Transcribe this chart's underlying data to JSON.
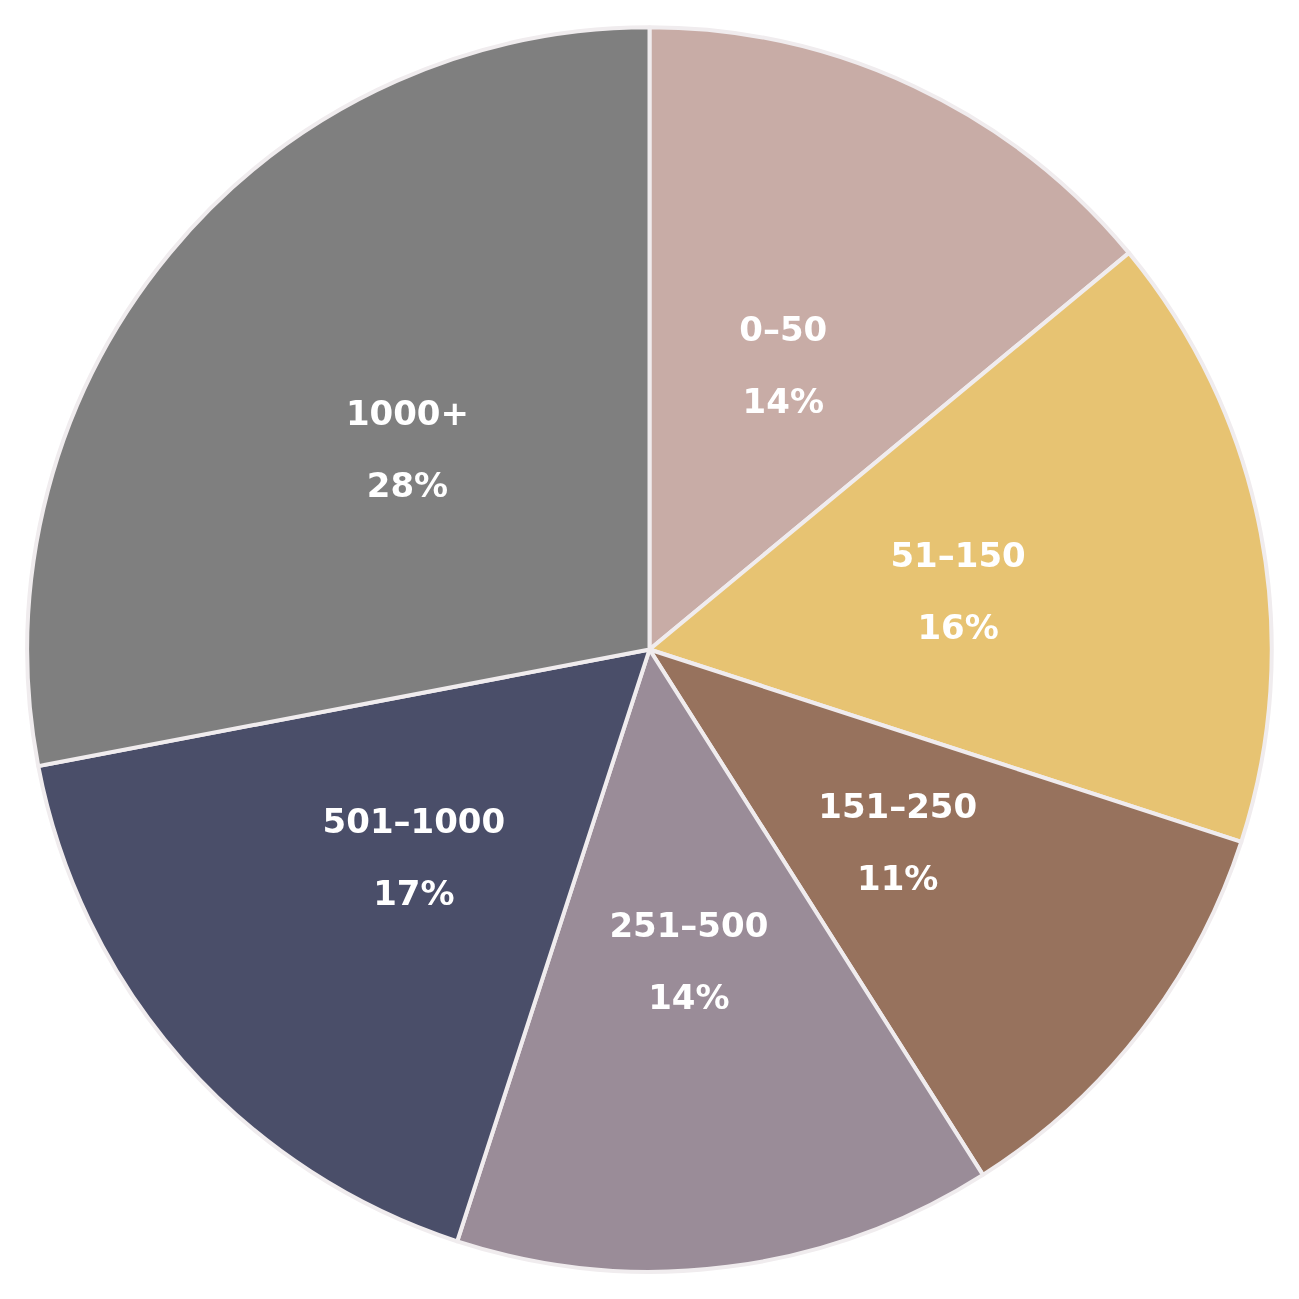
{
  "chart_data": {
    "type": "pie",
    "categories": [
      "0–50",
      "51–150",
      "151–250",
      "251–500",
      "501–1000",
      "1000+"
    ],
    "values": [
      14,
      16,
      11,
      14,
      17,
      28
    ],
    "colors": [
      "#c8aca6",
      "#e7c372",
      "#97725d",
      "#9a8c98",
      "#4a4e69",
      "#7f7f7f"
    ],
    "value_labels": [
      "14%",
      "16%",
      "11%",
      "14%",
      "17%",
      "28%"
    ],
    "legend": false
  }
}
